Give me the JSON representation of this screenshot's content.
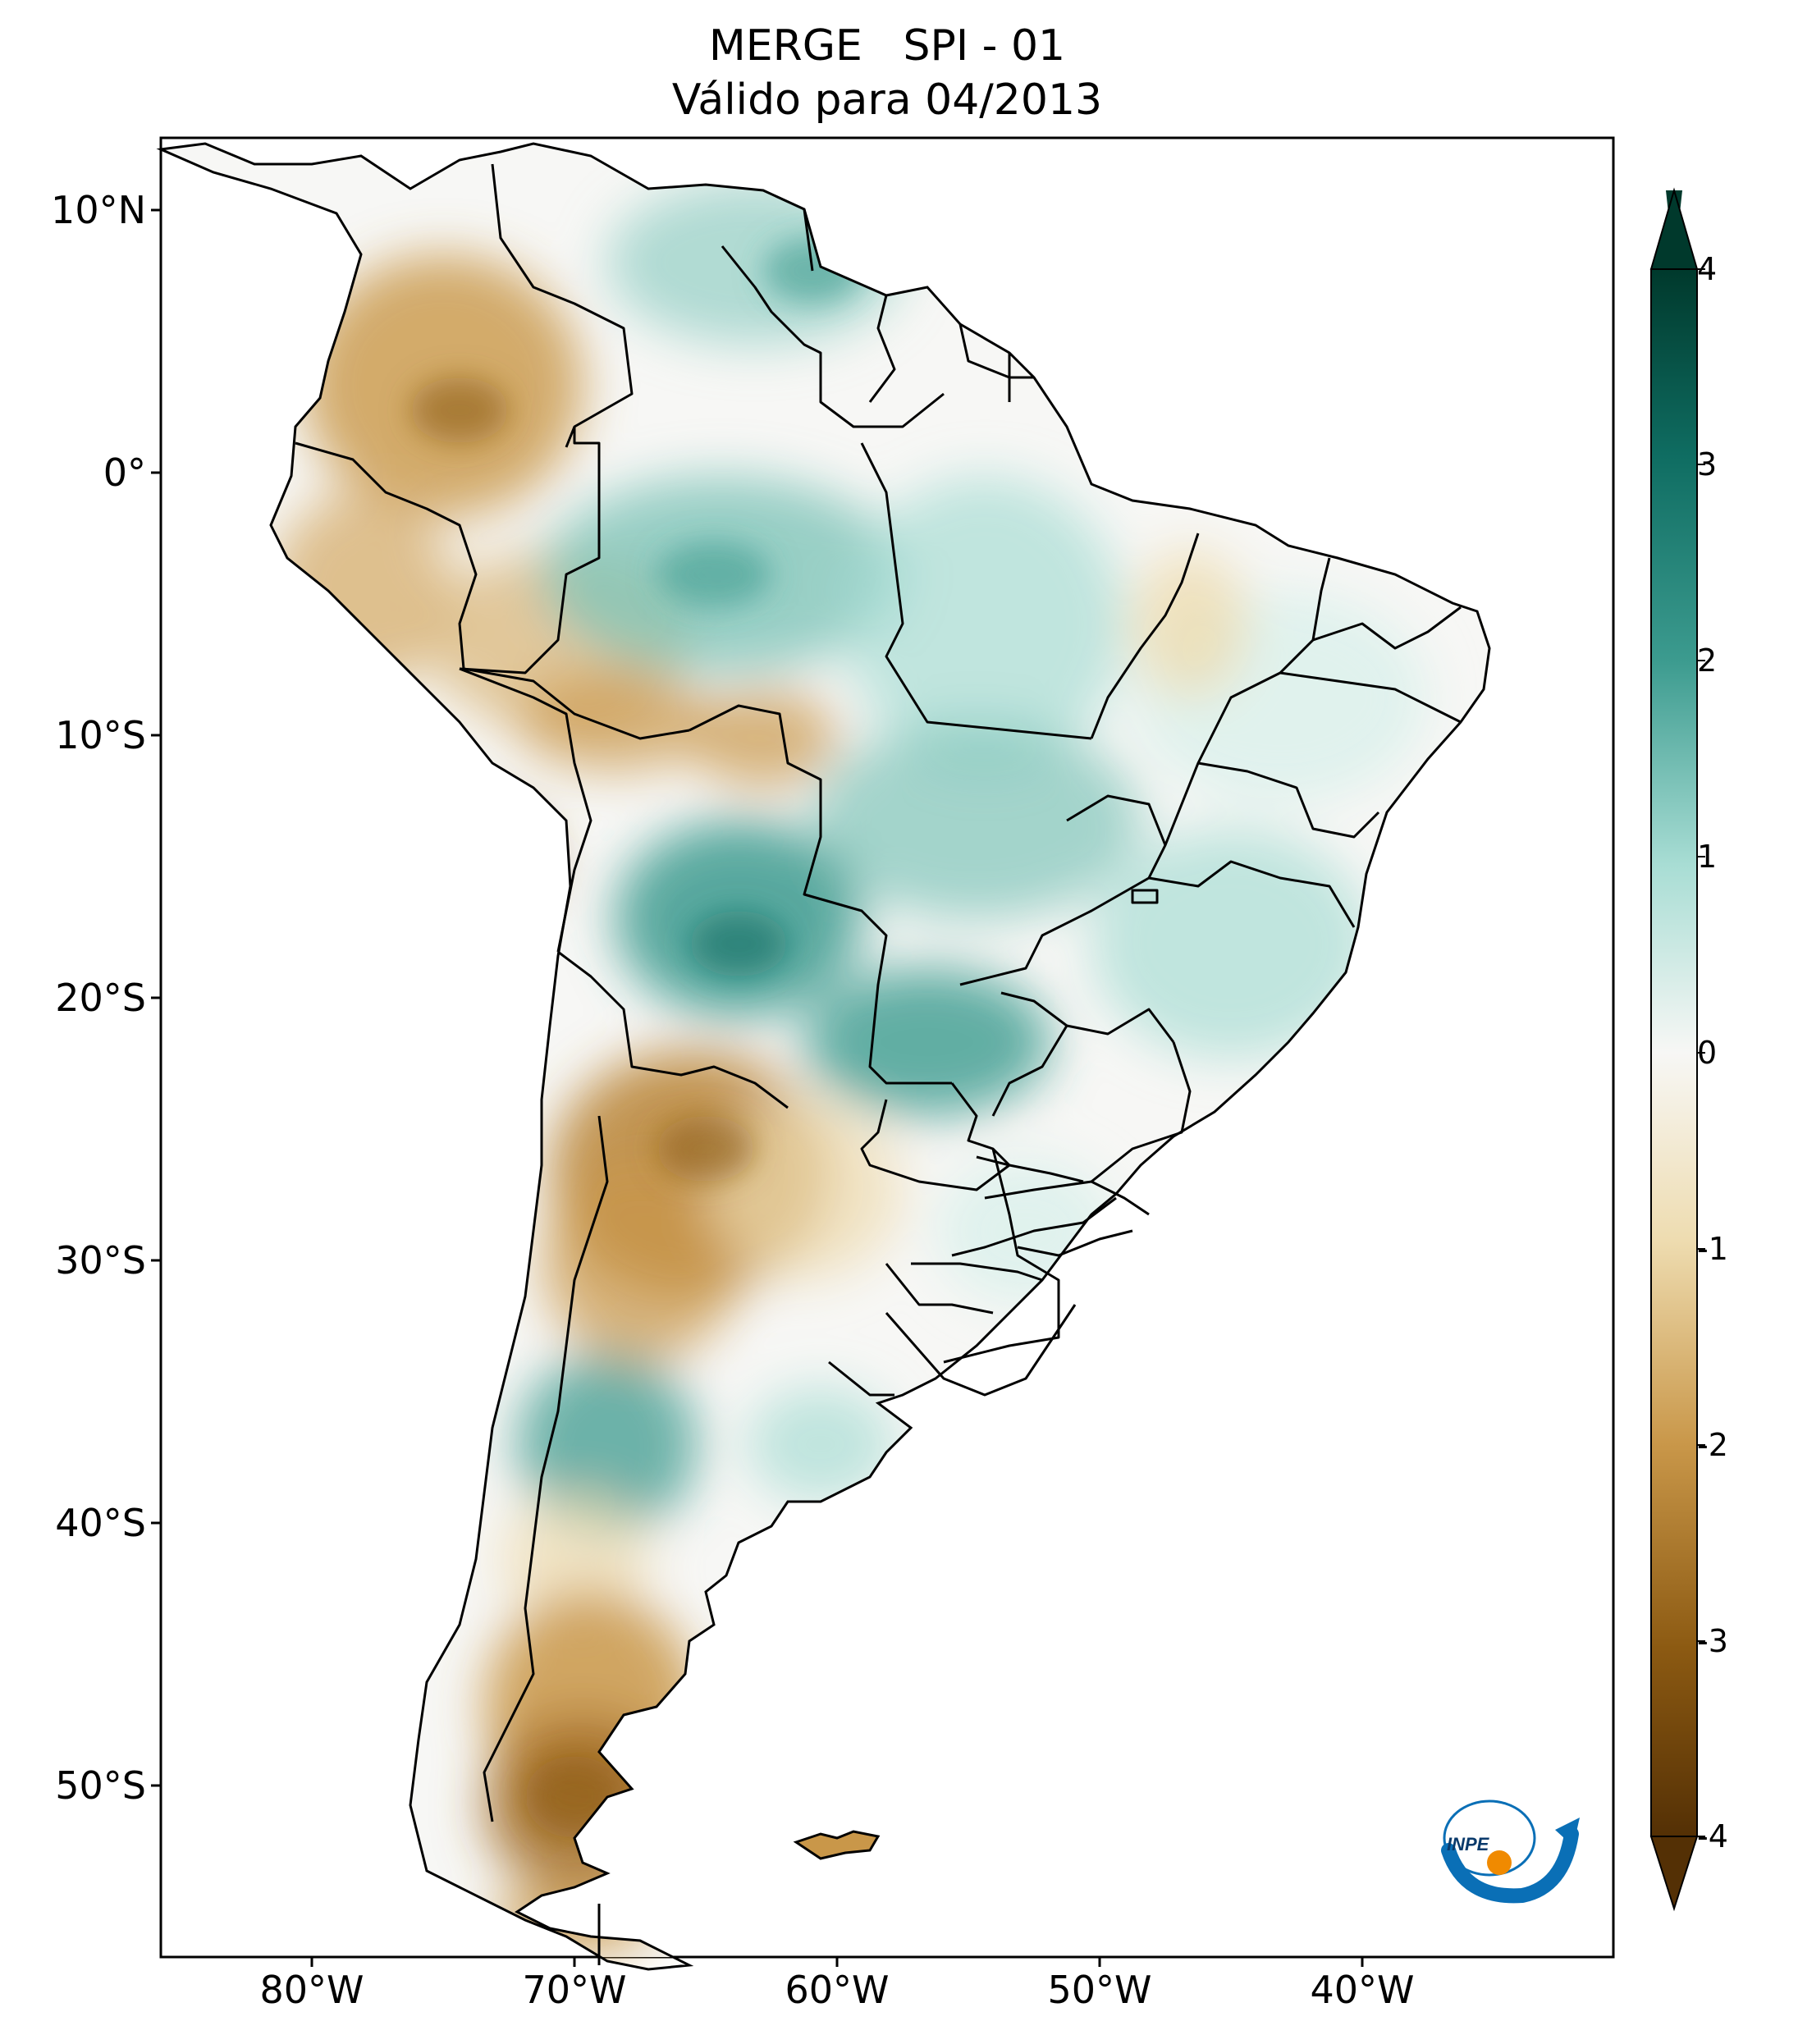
{
  "title": {
    "line1": "MERGE   SPI - 01",
    "line2": "Válido para 04/2013"
  },
  "map": {
    "type": "choropleth",
    "region": "South America",
    "variable": "SPI - 01",
    "lon_range": [
      -85,
      -30
    ],
    "lat_range": [
      -56,
      13
    ]
  },
  "axes": {
    "lat_ticks": [
      "10°N",
      "0°",
      "10°S",
      "20°S",
      "30°S",
      "40°S",
      "50°S"
    ],
    "lon_ticks": [
      "80°W",
      "70°W",
      "60°W",
      "50°W",
      "40°W"
    ]
  },
  "colorbar": {
    "range": [
      -4,
      4
    ],
    "extend": "both",
    "ticks": [
      "4",
      "3",
      "2",
      "1",
      "0",
      "-1",
      "-2",
      "-3",
      "-4"
    ],
    "colors": {
      "max": "#00392c",
      "wet_strong": "#0f6d62",
      "wet": "#3c9b8f",
      "wet_light": "#a8ddd4",
      "neutral": "#f7f7f5",
      "dry_light": "#eedcb0",
      "dry": "#c99749",
      "dry_strong": "#8c5a12",
      "min": "#543005"
    }
  },
  "logo": {
    "text": "INPE",
    "colors": [
      "#0a6fb6",
      "#f08a00"
    ]
  }
}
